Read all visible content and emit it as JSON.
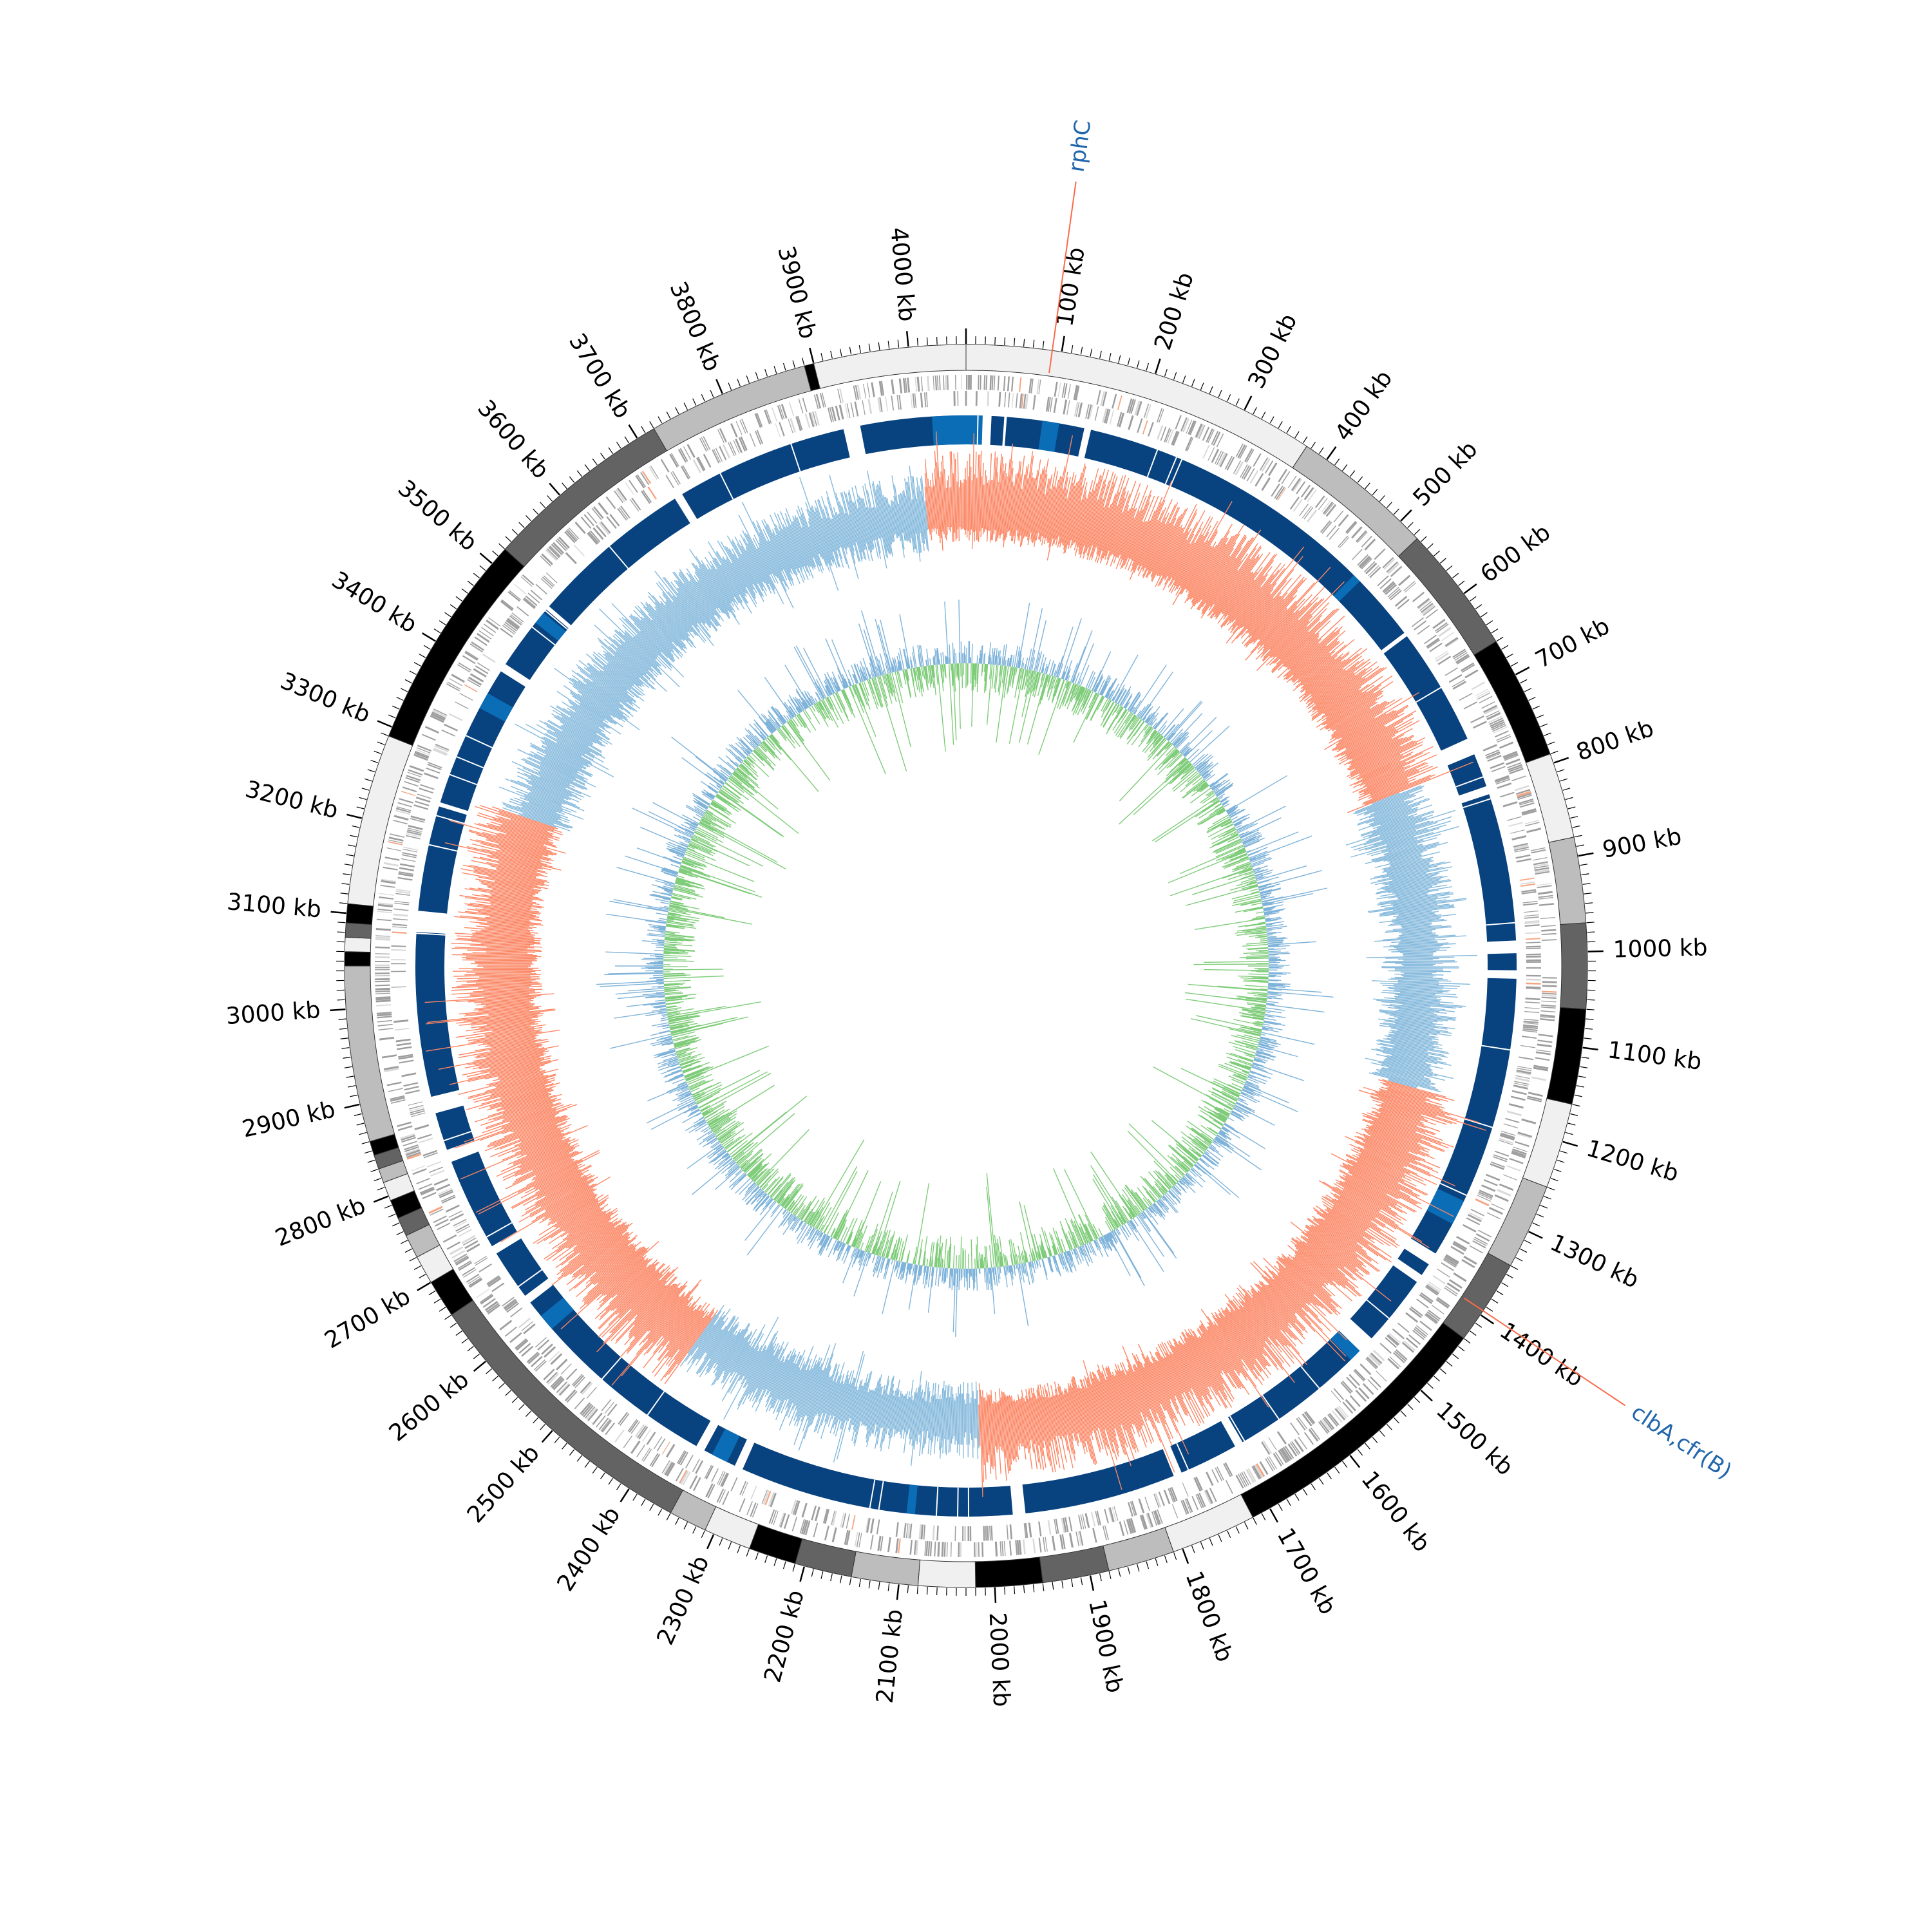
{
  "genome": {
    "total_kb": 4060,
    "unit": "kb",
    "tick_step_kb": 100,
    "ticks_kb": [
      100,
      200,
      300,
      400,
      500,
      600,
      700,
      800,
      900,
      1000,
      1100,
      1200,
      1300,
      1400,
      1500,
      1600,
      1700,
      1800,
      1900,
      2000,
      2100,
      2200,
      2300,
      2400,
      2500,
      2600,
      2700,
      2800,
      2900,
      3000,
      3100,
      3200,
      3300,
      3400,
      3500,
      3600,
      3700,
      3800,
      3900,
      4000
    ],
    "tick_labels": [
      "100 kb",
      "200 kb",
      "300 kb",
      "400 kb",
      "500 kb",
      "600 kb",
      "700 kb",
      "800 kb",
      "900 kb",
      "1000 kb",
      "1100 kb",
      "1200 kb",
      "1300 kb",
      "1400 kb",
      "1500 kb",
      "1600 kb",
      "1700 kb",
      "1800 kb",
      "1900 kb",
      "2000 kb",
      "2100 kb",
      "2200 kb",
      "2300 kb",
      "2400 kb",
      "2500 kb",
      "2600 kb",
      "2700 kb",
      "2800 kb",
      "2900 kb",
      "3000 kb",
      "3100 kb",
      "3200 kb",
      "3300 kb",
      "3400 kb",
      "3500 kb",
      "3600 kb",
      "3700 kb",
      "3800 kb",
      "3900 kb",
      "4000 kb"
    ]
  },
  "contigs": [
    {
      "start": 0,
      "end": 375,
      "shade": "#f0f0f0"
    },
    {
      "start": 375,
      "end": 525,
      "shade": "#bdbdbd"
    },
    {
      "start": 525,
      "end": 660,
      "shade": "#636363"
    },
    {
      "start": 660,
      "end": 790,
      "shade": "#000000"
    },
    {
      "start": 790,
      "end": 880,
      "shade": "#f0f0f0"
    },
    {
      "start": 880,
      "end": 970,
      "shade": "#bdbdbd"
    },
    {
      "start": 970,
      "end": 1060,
      "shade": "#636363"
    },
    {
      "start": 1060,
      "end": 1160,
      "shade": "#000000"
    },
    {
      "start": 1160,
      "end": 1250,
      "shade": "#f0f0f0"
    },
    {
      "start": 1250,
      "end": 1340,
      "shade": "#bdbdbd"
    },
    {
      "start": 1340,
      "end": 1430,
      "shade": "#636363"
    },
    {
      "start": 1430,
      "end": 1720,
      "shade": "#000000"
    },
    {
      "start": 1720,
      "end": 1810,
      "shade": "#f0f0f0"
    },
    {
      "start": 1810,
      "end": 1880,
      "shade": "#bdbdbd"
    },
    {
      "start": 1880,
      "end": 1950,
      "shade": "#636363"
    },
    {
      "start": 1950,
      "end": 2020,
      "shade": "#000000"
    },
    {
      "start": 2020,
      "end": 2080,
      "shade": "#f0f0f0"
    },
    {
      "start": 2080,
      "end": 2150,
      "shade": "#bdbdbd"
    },
    {
      "start": 2150,
      "end": 2210,
      "shade": "#636363"
    },
    {
      "start": 2210,
      "end": 2260,
      "shade": "#000000"
    },
    {
      "start": 2260,
      "end": 2310,
      "shade": "#f0f0f0"
    },
    {
      "start": 2310,
      "end": 2350,
      "shade": "#bdbdbd"
    },
    {
      "start": 2350,
      "end": 2660,
      "shade": "#636363"
    },
    {
      "start": 2660,
      "end": 2700,
      "shade": "#000000"
    },
    {
      "start": 2700,
      "end": 2730,
      "shade": "#f0f0f0"
    },
    {
      "start": 2730,
      "end": 2755,
      "shade": "#bdbdbd"
    },
    {
      "start": 2755,
      "end": 2775,
      "shade": "#636363"
    },
    {
      "start": 2775,
      "end": 2795,
      "shade": "#000000"
    },
    {
      "start": 2795,
      "end": 2815,
      "shade": "#f0f0f0"
    },
    {
      "start": 2815,
      "end": 2830,
      "shade": "#bdbdbd"
    },
    {
      "start": 2830,
      "end": 2845,
      "shade": "#636363"
    },
    {
      "start": 2845,
      "end": 2860,
      "shade": "#000000"
    },
    {
      "start": 2860,
      "end": 3045,
      "shade": "#bdbdbd"
    },
    {
      "start": 3045,
      "end": 3060,
      "shade": "#000000"
    },
    {
      "start": 3060,
      "end": 3075,
      "shade": "#f0f0f0"
    },
    {
      "start": 3075,
      "end": 3090,
      "shade": "#636363"
    },
    {
      "start": 3090,
      "end": 3110,
      "shade": "#000000"
    },
    {
      "start": 3110,
      "end": 3290,
      "shade": "#f0f0f0"
    },
    {
      "start": 3290,
      "end": 3520,
      "shade": "#000000"
    },
    {
      "start": 3520,
      "end": 3720,
      "shade": "#636363"
    },
    {
      "start": 3720,
      "end": 3890,
      "shade": "#bdbdbd"
    },
    {
      "start": 3890,
      "end": 3900,
      "shade": "#000000"
    },
    {
      "start": 3900,
      "end": 4060,
      "shade": "#f0f0f0"
    }
  ],
  "tracks": {
    "backbone_gaps_kb": [
      [
        20,
        30
      ],
      [
        45,
        48
      ],
      [
        140,
        148
      ],
      [
        595,
        600
      ],
      [
        740,
        760
      ],
      [
        800,
        810
      ],
      [
        985,
        1000
      ],
      [
        1020,
        1030
      ],
      [
        1370,
        1385
      ],
      [
        1400,
        1410
      ],
      [
        1495,
        1520
      ],
      [
        1690,
        1700
      ],
      [
        1770,
        1780
      ],
      [
        1960,
        1975
      ],
      [
        2300,
        2310
      ],
      [
        2350,
        2360
      ],
      [
        2620,
        2630
      ],
      [
        2690,
        2700
      ],
      [
        2810,
        2825
      ],
      [
        2870,
        2890
      ],
      [
        3085,
        3110
      ],
      [
        3235,
        3240
      ],
      [
        3410,
        3420
      ],
      [
        3500,
        3505
      ],
      [
        3700,
        3710
      ],
      [
        3915,
        3935
      ]
    ],
    "backbone_highlight_kb": [
      [
        4020,
        4060
      ],
      [
        0,
        20
      ],
      [
        90,
        110
      ],
      [
        505,
        515
      ],
      [
        1300,
        1330
      ],
      [
        1515,
        1530
      ],
      [
        2090,
        2100
      ],
      [
        2320,
        2340
      ],
      [
        2580,
        2600
      ],
      [
        3360,
        3380
      ],
      [
        3480,
        3495
      ]
    ],
    "colors": {
      "contig_outline": "#333333",
      "gene_marks": "#9e9e9e",
      "gene_marks_alt": "#d9d9d9",
      "gene_mark_special": "#f4a582",
      "backbone": "#08427f",
      "backbone_highlight": "#0b6db5",
      "gc_content_high": "#fb8664",
      "gc_content_low": "#85b9dc",
      "gc_skew_positive": "#7fcc7a",
      "gc_skew_negative": "#7fb3d9",
      "label_line": "#fb6a4a",
      "label_text": "#2166ac"
    }
  },
  "annotations": [
    {
      "label": "rphC",
      "position_kb": 90
    },
    {
      "label": "clbA,cfr(B)",
      "position_kb": 1395
    }
  ]
}
